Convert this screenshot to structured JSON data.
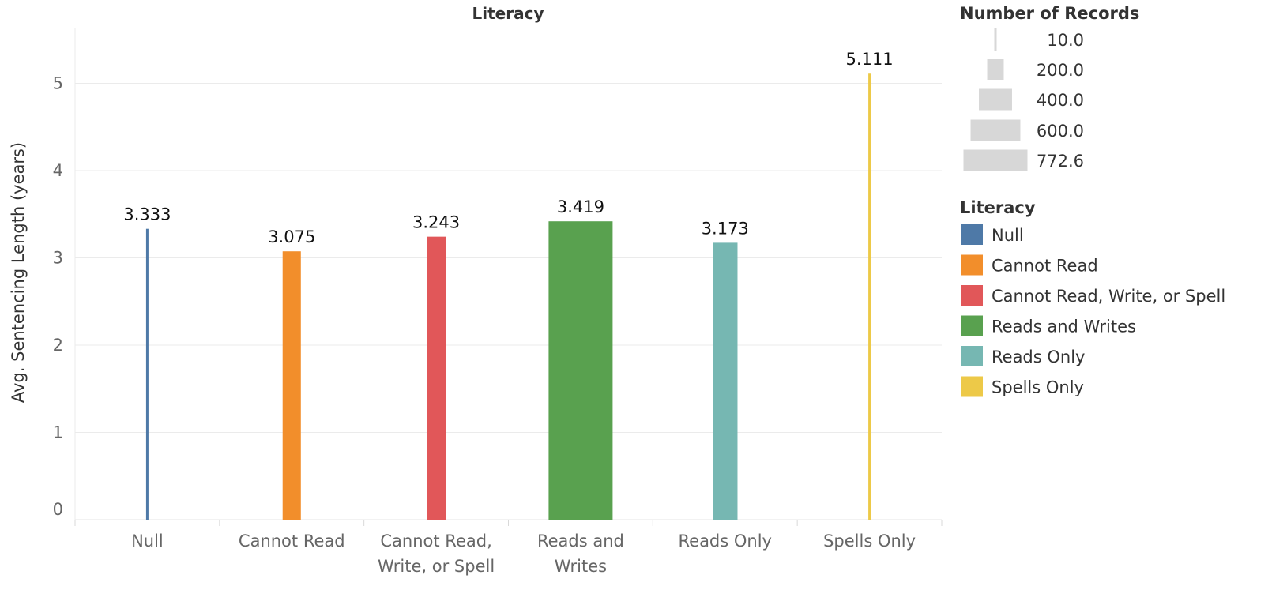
{
  "chart_data": {
    "type": "bar",
    "title": "Literacy",
    "xlabel": "",
    "ylabel": "Avg. Sentencing Length (years)",
    "ylim": [
      0,
      5.5
    ],
    "yticks": [
      "0",
      "1",
      "2",
      "3",
      "4",
      "5"
    ],
    "grid": true,
    "categories": [
      {
        "name": "Null",
        "label_lines": [
          "Null"
        ],
        "value": 3.333,
        "value_label": "3.333",
        "records": 10,
        "color": "#4e79a7"
      },
      {
        "name": "Cannot Read",
        "label_lines": [
          "Cannot Read"
        ],
        "value": 3.075,
        "value_label": "3.075",
        "records": 220,
        "color": "#f28e2b"
      },
      {
        "name": "Cannot Read, Write, or Spell",
        "label_lines": [
          "Cannot Read,",
          "Write, or Spell"
        ],
        "value": 3.243,
        "value_label": "3.243",
        "records": 230,
        "color": "#e15759"
      },
      {
        "name": "Reads and Writes",
        "label_lines": [
          "Reads and",
          "Writes"
        ],
        "value": 3.419,
        "value_label": "3.419",
        "records": 772.6,
        "color": "#59a14f"
      },
      {
        "name": "Reads Only",
        "label_lines": [
          "Reads Only"
        ],
        "value": 3.173,
        "value_label": "3.173",
        "records": 300,
        "color": "#76b7b2"
      },
      {
        "name": "Spells Only",
        "label_lines": [
          "Spells Only"
        ],
        "value": 5.111,
        "value_label": "5.111",
        "records": 15,
        "color": "#edc948"
      }
    ],
    "size_legend": {
      "title": "Number of Records",
      "position": "top-right",
      "items": [
        {
          "value": 10,
          "label": "10.0"
        },
        {
          "value": 200,
          "label": "200.0"
        },
        {
          "value": 400,
          "label": "400.0"
        },
        {
          "value": 600,
          "label": "600.0"
        },
        {
          "value": 772.6,
          "label": "772.6"
        }
      ]
    },
    "color_legend": {
      "title": "Literacy",
      "position": "right",
      "items": [
        {
          "label": "Null",
          "color": "#4e79a7"
        },
        {
          "label": "Cannot Read",
          "color": "#f28e2b"
        },
        {
          "label": "Cannot Read, Write, or Spell",
          "color": "#e15759"
        },
        {
          "label": "Reads and Writes",
          "color": "#59a14f"
        },
        {
          "label": "Reads Only",
          "color": "#76b7b2"
        },
        {
          "label": "Spells Only",
          "color": "#edc948"
        }
      ]
    }
  }
}
